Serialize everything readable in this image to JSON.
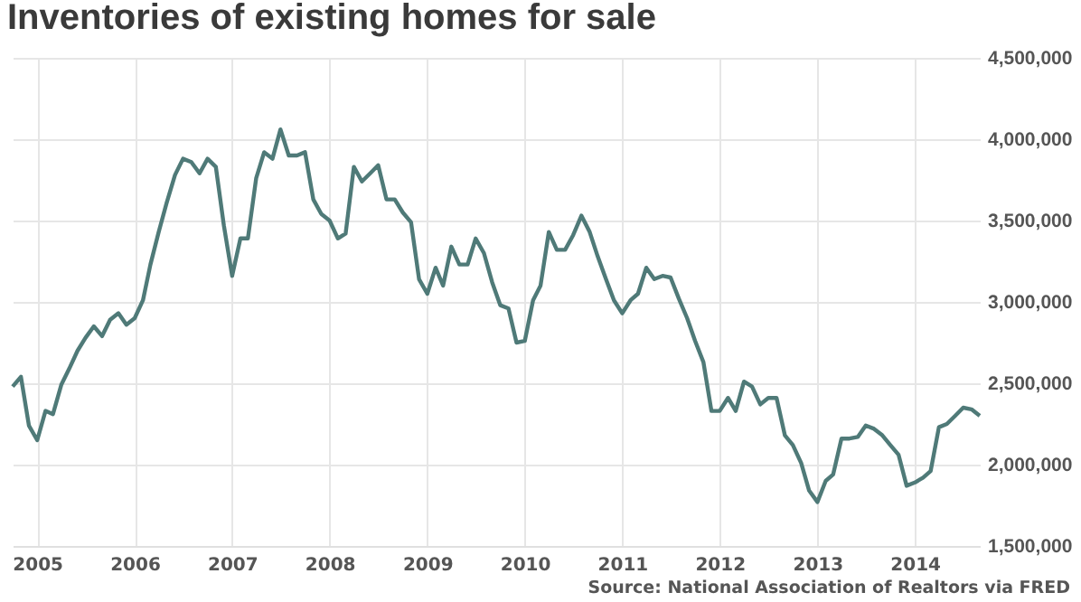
{
  "chart_data": {
    "type": "line",
    "title": "Inventories of existing homes for sale",
    "annotations": [
      "Source: National Association of Realtors via FRED"
    ],
    "x": [
      "2004-10",
      "2004-11",
      "2004-12",
      "2005-01",
      "2005-02",
      "2005-03",
      "2005-04",
      "2005-05",
      "2005-06",
      "2005-07",
      "2005-08",
      "2005-09",
      "2005-10",
      "2005-11",
      "2005-12",
      "2006-01",
      "2006-02",
      "2006-03",
      "2006-04",
      "2006-05",
      "2006-06",
      "2006-07",
      "2006-08",
      "2006-09",
      "2006-10",
      "2006-11",
      "2006-12",
      "2007-01",
      "2007-02",
      "2007-03",
      "2007-04",
      "2007-05",
      "2007-06",
      "2007-07",
      "2007-08",
      "2007-09",
      "2007-10",
      "2007-11",
      "2007-12",
      "2008-01",
      "2008-02",
      "2008-03",
      "2008-04",
      "2008-05",
      "2008-06",
      "2008-07",
      "2008-08",
      "2008-09",
      "2008-10",
      "2008-11",
      "2008-12",
      "2009-01",
      "2009-02",
      "2009-03",
      "2009-04",
      "2009-05",
      "2009-06",
      "2009-07",
      "2009-08",
      "2009-09",
      "2009-10",
      "2009-11",
      "2009-12",
      "2010-01",
      "2010-02",
      "2010-03",
      "2010-04",
      "2010-05",
      "2010-06",
      "2010-07",
      "2010-08",
      "2010-09",
      "2010-10",
      "2010-11",
      "2010-12",
      "2011-01",
      "2011-02",
      "2011-03",
      "2011-04",
      "2011-05",
      "2011-06",
      "2011-07",
      "2011-08",
      "2011-09",
      "2011-10",
      "2011-11",
      "2011-12",
      "2012-01",
      "2012-02",
      "2012-03",
      "2012-04",
      "2012-05",
      "2012-06",
      "2012-07",
      "2012-08",
      "2012-09",
      "2012-10",
      "2012-11",
      "2012-12",
      "2013-01",
      "2013-02",
      "2013-03",
      "2013-04",
      "2013-05",
      "2013-06",
      "2013-07",
      "2013-08",
      "2013-09",
      "2013-10",
      "2013-11",
      "2013-12",
      "2014-01",
      "2014-02",
      "2014-03",
      "2014-04",
      "2014-05",
      "2014-06",
      "2014-07",
      "2014-08",
      "2014-09"
    ],
    "series": [
      {
        "color": "#4f7a78",
        "values": [
          2480000,
          2540000,
          2240000,
          2150000,
          2330000,
          2310000,
          2490000,
          2590000,
          2700000,
          2780000,
          2850000,
          2790000,
          2890000,
          2930000,
          2860000,
          2900000,
          3010000,
          3230000,
          3430000,
          3610000,
          3780000,
          3880000,
          3860000,
          3790000,
          3880000,
          3830000,
          3470000,
          3160000,
          3390000,
          3390000,
          3760000,
          3920000,
          3880000,
          4060000,
          3900000,
          3900000,
          3920000,
          3630000,
          3540000,
          3500000,
          3390000,
          3420000,
          3830000,
          3740000,
          3790000,
          3840000,
          3630000,
          3630000,
          3550000,
          3490000,
          3140000,
          3050000,
          3210000,
          3100000,
          3340000,
          3230000,
          3230000,
          3390000,
          3300000,
          3120000,
          2980000,
          2960000,
          2750000,
          2760000,
          3010000,
          3100000,
          3430000,
          3320000,
          3320000,
          3410000,
          3530000,
          3430000,
          3280000,
          3140000,
          3010000,
          2930000,
          3010000,
          3050000,
          3210000,
          3140000,
          3160000,
          3150000,
          3020000,
          2900000,
          2760000,
          2630000,
          2330000,
          2330000,
          2410000,
          2330000,
          2510000,
          2480000,
          2370000,
          2410000,
          2410000,
          2180000,
          2120000,
          2010000,
          1840000,
          1770000,
          1900000,
          1940000,
          2160000,
          2160000,
          2170000,
          2240000,
          2220000,
          2180000,
          2120000,
          2060000,
          1870000,
          1890000,
          1920000,
          1960000,
          2230000,
          2250000,
          2300000,
          2350000,
          2340000,
          2300000
        ]
      }
    ],
    "xlim": [
      "2004-10",
      "2014-09"
    ],
    "xticks": [
      "2005",
      "2006",
      "2007",
      "2008",
      "2009",
      "2010",
      "2011",
      "2012",
      "2013",
      "2014"
    ],
    "ylim": [
      1500000,
      4500000
    ],
    "yticks": [
      {
        "value": 1500000,
        "label": "1,500,000"
      },
      {
        "value": 2000000,
        "label": "2,000,000"
      },
      {
        "value": 2500000,
        "label": "2,500,000"
      },
      {
        "value": 3000000,
        "label": "3,000,000"
      },
      {
        "value": 3500000,
        "label": "3,500,000"
      },
      {
        "value": 4000000,
        "label": "4,000,000"
      },
      {
        "value": 4500000,
        "label": "4,500,000"
      }
    ],
    "grid": true,
    "legend": false,
    "line_style": "solid"
  }
}
